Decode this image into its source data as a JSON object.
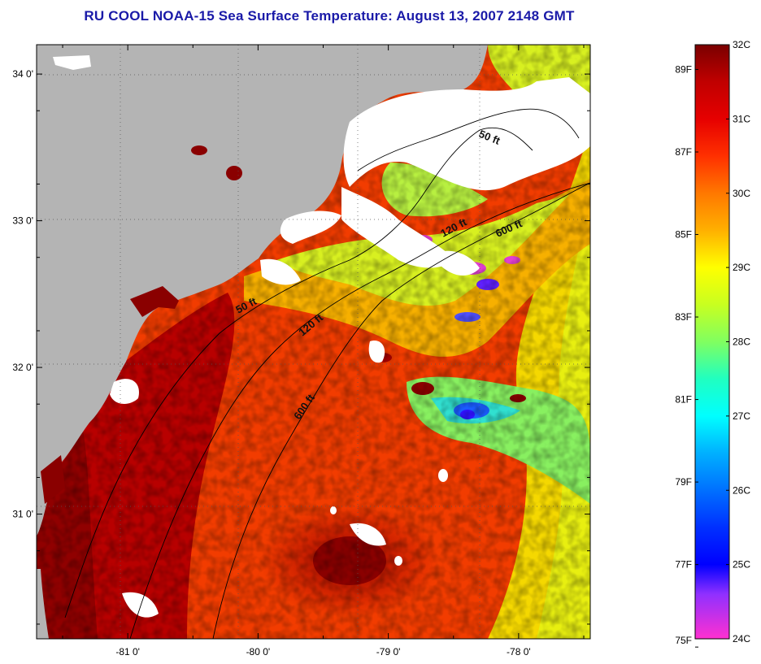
{
  "title": "RU COOL  NOAA-15  Sea Surface Temperature:  August 13, 2007 2148 GMT",
  "map": {
    "lat_range": [
      30.15,
      34.2
    ],
    "lon_range": [
      -81.7,
      -77.45
    ],
    "lat_ticks": [
      {
        "value": 34,
        "label": "34 0'"
      },
      {
        "value": 33,
        "label": "33 0'"
      },
      {
        "value": 32,
        "label": "32 0'"
      },
      {
        "value": 31,
        "label": "31 0'"
      }
    ],
    "lon_ticks": [
      {
        "value": -81,
        "label": "-81 0'"
      },
      {
        "value": -80,
        "label": "-80 0'"
      },
      {
        "value": -79,
        "label": "-79 0'"
      },
      {
        "value": -78,
        "label": "-78 0'"
      }
    ],
    "grid": "dotted",
    "colors": {
      "land": "#b4b4b4",
      "cloud": "#ffffff",
      "contour": "#000000"
    },
    "contour_labels": [
      {
        "id": "c50-north",
        "text": "50 ft"
      },
      {
        "id": "c120-north",
        "text": "120 ft"
      },
      {
        "id": "c600-north",
        "text": "600 ft"
      },
      {
        "id": "c50-mid",
        "text": "50 ft"
      },
      {
        "id": "c120-mid",
        "text": "120 ft"
      },
      {
        "id": "c600-mid",
        "text": "600 ft"
      }
    ]
  },
  "colorbar": {
    "celsius_range": [
      24,
      32
    ],
    "celsius_labels": [
      {
        "value": 32,
        "label": "32C"
      },
      {
        "value": 31,
        "label": "31C"
      },
      {
        "value": 30,
        "label": "30C"
      },
      {
        "value": 29,
        "label": "29C"
      },
      {
        "value": 28,
        "label": "28C"
      },
      {
        "value": 27,
        "label": "27C"
      },
      {
        "value": 26,
        "label": "26C"
      },
      {
        "value": 25,
        "label": "25C"
      },
      {
        "value": 24,
        "label": "24C"
      }
    ],
    "fahrenheit_labels": [
      {
        "value": 89,
        "label": "89F"
      },
      {
        "value": 87,
        "label": "87F"
      },
      {
        "value": 85,
        "label": "85F"
      },
      {
        "value": 83,
        "label": "83F"
      },
      {
        "value": 81,
        "label": "81F"
      },
      {
        "value": 79,
        "label": "79F"
      },
      {
        "value": 77,
        "label": "77F"
      },
      {
        "value": 75,
        "label": "75F"
      }
    ],
    "stops": [
      {
        "c": 32,
        "color": "#7a0000"
      },
      {
        "c": 31.5,
        "color": "#c00000"
      },
      {
        "c": 31,
        "color": "#e60000"
      },
      {
        "c": 30.5,
        "color": "#ff3000"
      },
      {
        "c": 30,
        "color": "#ff7800"
      },
      {
        "c": 29.5,
        "color": "#ffb000"
      },
      {
        "c": 29,
        "color": "#ffff00"
      },
      {
        "c": 28.5,
        "color": "#c8ff20"
      },
      {
        "c": 28,
        "color": "#80ff60"
      },
      {
        "c": 27.5,
        "color": "#20ffc0"
      },
      {
        "c": 27,
        "color": "#00ffff"
      },
      {
        "c": 26.5,
        "color": "#00b0ff"
      },
      {
        "c": 26,
        "color": "#0070ff"
      },
      {
        "c": 25.5,
        "color": "#0030ff"
      },
      {
        "c": 25,
        "color": "#0000ff"
      },
      {
        "c": 24.6,
        "color": "#9030ff"
      },
      {
        "c": 24,
        "color": "#ff30d0"
      }
    ]
  }
}
